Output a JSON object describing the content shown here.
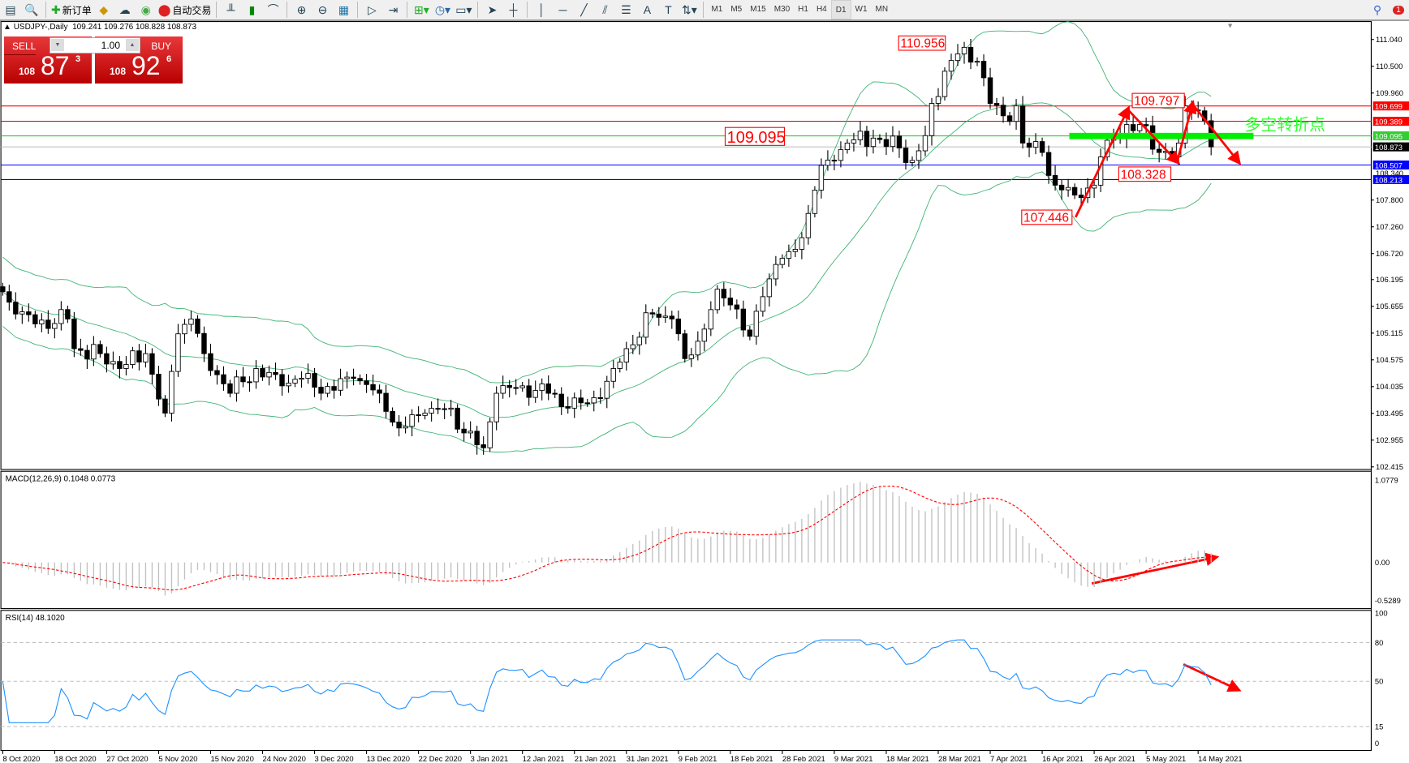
{
  "toolbar": {
    "new_order": "新订单",
    "auto_trading": "自动交易",
    "timeframes": [
      "M1",
      "M5",
      "M15",
      "M30",
      "H1",
      "H4",
      "D1",
      "W1",
      "MN"
    ],
    "active_timeframe": "D1",
    "notification_count": "1"
  },
  "chart": {
    "symbol_header": "USDJPY-,Daily",
    "ohlc": "109.241 109.276 108.828 108.873"
  },
  "trade_panel": {
    "sell_label": "SELL",
    "buy_label": "BUY",
    "lot": "1.00",
    "sell_price": {
      "big": "108",
      "main": "87",
      "sup": "3"
    },
    "buy_price": {
      "big": "108",
      "main": "92",
      "sup": "6"
    }
  },
  "chart_data": {
    "type": "candlestick",
    "symbol": "USDJPY",
    "timeframe": "Daily",
    "price_ticks": [
      "111.040",
      "110.500",
      "109.960",
      "107.800",
      "107.260",
      "106.720",
      "106.195",
      "105.655",
      "105.115",
      "104.575",
      "104.035",
      "103.495",
      "102.955",
      "102.415"
    ],
    "price_range": [
      102.415,
      111.04
    ],
    "close_keypoints": [
      [
        0,
        105.95
      ],
      [
        2,
        105.5
      ],
      [
        5,
        105.3
      ],
      [
        10,
        105.4
      ],
      [
        11,
        104.8
      ],
      [
        15,
        104.7
      ],
      [
        18,
        104.4
      ],
      [
        22,
        104.7
      ],
      [
        25,
        103.5
      ],
      [
        27,
        105.1
      ],
      [
        29,
        105.4
      ],
      [
        31,
        104.7
      ],
      [
        35,
        103.9
      ],
      [
        39,
        104.4
      ],
      [
        43,
        104.05
      ],
      [
        47,
        104.3
      ],
      [
        49,
        103.9
      ],
      [
        54,
        104.2
      ],
      [
        58,
        103.9
      ],
      [
        61,
        103.2
      ],
      [
        65,
        103.5
      ],
      [
        69,
        103.6
      ],
      [
        71,
        103.1
      ],
      [
        74,
        102.8
      ],
      [
        76,
        103.9
      ],
      [
        80,
        104.05
      ],
      [
        84,
        103.9
      ],
      [
        87,
        103.6
      ],
      [
        92,
        103.8
      ],
      [
        94,
        104.4
      ],
      [
        96,
        104.8
      ],
      [
        100,
        105.5
      ],
      [
        103,
        105.4
      ],
      [
        105,
        104.6
      ],
      [
        107,
        104.95
      ],
      [
        110,
        106.0
      ],
      [
        113,
        105.6
      ],
      [
        115,
        105.05
      ],
      [
        117,
        105.85
      ],
      [
        119,
        106.5
      ],
      [
        121,
        106.76
      ],
      [
        123,
        107.04
      ],
      [
        125,
        108.0
      ],
      [
        126,
        108.5
      ],
      [
        128,
        108.6
      ],
      [
        130,
        108.95
      ],
      [
        134,
        109.05
      ],
      [
        138,
        108.85
      ],
      [
        140,
        108.6
      ],
      [
        142,
        109.1
      ],
      [
        143,
        109.75
      ],
      [
        145,
        110.4
      ],
      [
        147,
        110.75
      ],
      [
        150,
        110.6
      ],
      [
        152,
        109.75
      ],
      [
        154,
        109.5
      ],
      [
        156,
        109.7
      ],
      [
        157,
        108.95
      ],
      [
        160,
        108.76
      ],
      [
        162,
        108.1
      ],
      [
        165,
        107.9
      ],
      [
        166,
        107.85
      ],
      [
        168,
        108.1
      ],
      [
        169,
        108.67
      ],
      [
        171,
        109.1
      ],
      [
        174,
        109.2
      ],
      [
        176,
        109.3
      ],
      [
        178,
        108.76
      ],
      [
        180,
        108.67
      ],
      [
        181,
        108.95
      ],
      [
        182,
        109.7
      ],
      [
        184,
        109.6
      ],
      [
        185,
        109.4
      ],
      [
        186,
        108.873
      ]
    ],
    "date_labels": [
      "8 Oct 2020",
      "18 Oct 2020",
      "27 Oct 2020",
      "5 Nov 2020",
      "15 Nov 2020",
      "24 Nov 2020",
      "3 Dec 2020",
      "13 Dec 2020",
      "22 Dec 2020",
      "3 Jan 2021",
      "12 Jan 2021",
      "21 Jan 2021",
      "31 Jan 2021",
      "9 Feb 2021",
      "18 Feb 2021",
      "28 Feb 2021",
      "9 Mar 2021",
      "18 Mar 2021",
      "28 Mar 2021",
      "7 Apr 2021",
      "16 Apr 2021",
      "26 Apr 2021",
      "5 May 2021",
      "14 May 2021"
    ],
    "bollinger": {
      "period": 20,
      "deviation": 2,
      "color": "#3cb371"
    },
    "horizontal_lines": [
      {
        "price": 109.699,
        "label": "109.699",
        "color": "#ff0000"
      },
      {
        "price": 109.389,
        "label": "109.389",
        "color": "#ff0000"
      },
      {
        "price": 109.095,
        "label": "109.095",
        "color": "#33cc33"
      },
      {
        "price": 108.873,
        "label": "108.873",
        "color": "#c0c0c0",
        "label_bg": "#000000"
      },
      {
        "price": 108.507,
        "label": "108.507",
        "color": "#0000ff"
      },
      {
        "price": 108.213,
        "label": "108.213",
        "color": "#0000ff"
      }
    ],
    "extra_axis_label": "108.340",
    "price_annotations": [
      {
        "text": "110.956",
        "price": 110.956
      },
      {
        "text": "109.095",
        "price": 109.095
      },
      {
        "text": "109.797",
        "price": 109.797
      },
      {
        "text": "108.328",
        "price": 108.328
      },
      {
        "text": "107.446",
        "price": 107.446
      }
    ],
    "zone_text": "多空转折点",
    "zone_color": "#00ee00",
    "macd": {
      "label": "MACD(12,26,9) 0.1048 0.0773",
      "ticks": [
        "1.0779",
        "0.00",
        "-0.5289"
      ],
      "range": [
        -0.5289,
        1.0779
      ],
      "fast": 12,
      "slow": 26,
      "signal": 9
    },
    "rsi": {
      "label": "RSI(14) 48.1020",
      "ticks": [
        "100",
        "80",
        "50",
        "15",
        "0"
      ],
      "levels": [
        80,
        50,
        15
      ],
      "period": 14,
      "color": "#1e90ff"
    },
    "annotation_color": "#ff0000"
  }
}
